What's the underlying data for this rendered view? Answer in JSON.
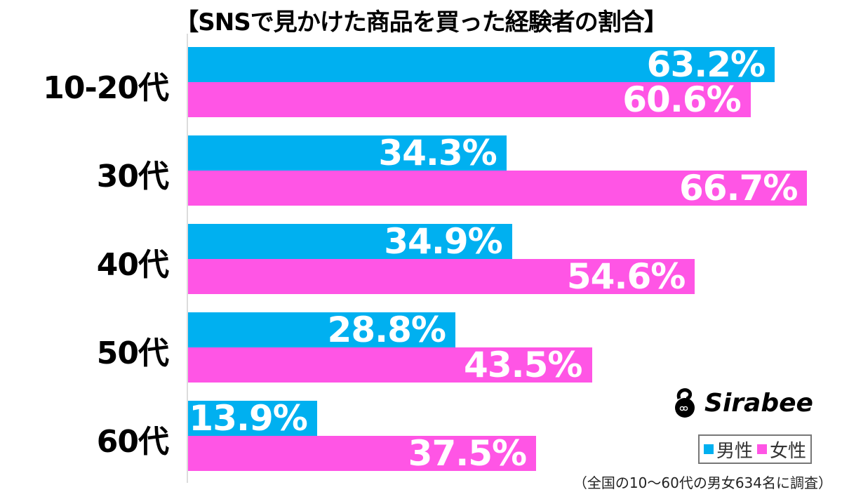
{
  "chart_data": {
    "type": "bar",
    "orientation": "horizontal",
    "title": "【SNSで見かけた商品を買った経験者の割合】",
    "categories": [
      "10-20代",
      "30代",
      "40代",
      "50代",
      "60代"
    ],
    "series": [
      {
        "name": "男性",
        "color": "#00b0f0",
        "values": [
          63.2,
          34.3,
          34.9,
          28.8,
          13.9
        ],
        "labels": [
          "63.2%",
          "34.3%",
          "34.9%",
          "28.8%",
          "13.9%"
        ]
      },
      {
        "name": "女性",
        "color": "#ff55e5",
        "values": [
          60.6,
          66.7,
          54.6,
          43.5,
          37.5
        ],
        "labels": [
          "60.6%",
          "66.7%",
          "54.6%",
          "43.5%",
          "37.5%"
        ]
      }
    ],
    "xlabel": "",
    "ylabel": "",
    "xlim": [
      0,
      70
    ],
    "grid": false,
    "legend_position": "bottom-right",
    "annotations": [
      "（全国の10〜60代の男女634名に調査）"
    ]
  },
  "logo": {
    "text": "Sirabee",
    "bg": "#00c8f8"
  },
  "legend": {
    "male": "男性",
    "female": "女性"
  },
  "note": "（全国の10〜60代の男女634名に調査）"
}
